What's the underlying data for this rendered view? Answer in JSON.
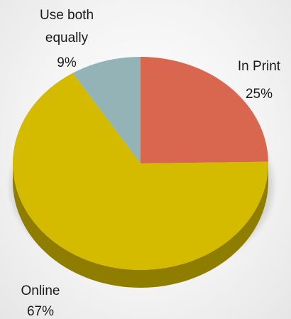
{
  "chart_data": {
    "type": "pie",
    "style": "3d",
    "title": "",
    "slices": [
      {
        "label": "In Print",
        "percent_label": "25%",
        "value": 25,
        "color": "#d9664e",
        "side_color": "#a84a36"
      },
      {
        "label": "Online",
        "percent_label": "67%",
        "value": 67,
        "color": "#d4bb00",
        "side_color": "#8f7d00"
      },
      {
        "label": "Use both equally",
        "percent_label": "9%",
        "value": 9,
        "color": "#93b3b6",
        "side_color": "#6b8587"
      }
    ]
  }
}
